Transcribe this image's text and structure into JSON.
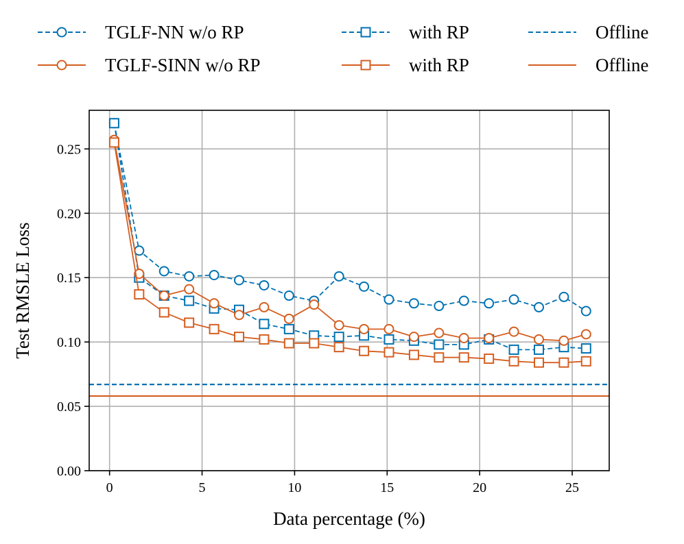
{
  "chart_data": {
    "type": "line",
    "xlabel": "Data percentage (%)",
    "ylabel": "Test RMSLE Loss",
    "xlim": [
      -1.1,
      27
    ],
    "ylim": [
      0,
      0.28
    ],
    "xticks": [
      0,
      5,
      10,
      15,
      20,
      25
    ],
    "yticks": [
      0.0,
      0.05,
      0.1,
      0.15,
      0.2,
      0.25
    ],
    "xtick_labels": [
      "0",
      "5",
      "10",
      "15",
      "20",
      "25"
    ],
    "ytick_labels": [
      "0.00",
      "0.05",
      "0.10",
      "0.15",
      "0.20",
      "0.25"
    ],
    "grid": true,
    "legend_position": "top",
    "x": [
      0.25,
      1.6,
      2.95,
      4.3,
      5.65,
      7.0,
      8.35,
      9.7,
      11.05,
      12.4,
      13.75,
      15.1,
      16.45,
      17.8,
      19.15,
      20.5,
      21.85,
      23.2,
      24.55,
      25.75
    ],
    "series": [
      {
        "name": "TGLF-NN w/o RP",
        "color": "#0072b2",
        "linestyle": "dashed",
        "marker": "circle",
        "values": [
          0.27,
          0.171,
          0.155,
          0.151,
          0.152,
          0.148,
          0.144,
          0.136,
          0.132,
          0.151,
          0.143,
          0.133,
          0.13,
          0.128,
          0.132,
          0.13,
          0.133,
          0.127,
          0.135,
          0.124
        ]
      },
      {
        "name": "with RP",
        "color": "#0072b2",
        "linestyle": "dashed",
        "marker": "square",
        "values": [
          0.27,
          0.15,
          0.136,
          0.132,
          0.126,
          0.125,
          0.114,
          0.11,
          0.105,
          0.104,
          0.105,
          0.102,
          0.101,
          0.098,
          0.098,
          0.102,
          0.094,
          0.094,
          0.096,
          0.095
        ]
      },
      {
        "name": "TGLF-SINN w/o RP",
        "color": "#d55e20",
        "linestyle": "solid",
        "marker": "circle",
        "values": [
          0.257,
          0.153,
          0.136,
          0.141,
          0.13,
          0.121,
          0.127,
          0.118,
          0.129,
          0.113,
          0.11,
          0.11,
          0.104,
          0.107,
          0.103,
          0.103,
          0.108,
          0.102,
          0.101,
          0.106
        ]
      },
      {
        "name": "with RP",
        "color": "#d55e20",
        "linestyle": "solid",
        "marker": "square",
        "values": [
          0.255,
          0.137,
          0.123,
          0.115,
          0.11,
          0.104,
          0.102,
          0.099,
          0.099,
          0.096,
          0.093,
          0.092,
          0.09,
          0.088,
          0.088,
          0.087,
          0.085,
          0.084,
          0.084,
          0.085
        ]
      }
    ],
    "reference_lines": [
      {
        "name": "Offline",
        "color": "#0072b2",
        "linestyle": "dashed",
        "value": 0.067
      },
      {
        "name": "Offline",
        "color": "#d55e20",
        "linestyle": "solid",
        "value": 0.058
      }
    ],
    "legend": [
      {
        "label": "TGLF-NN w/o RP",
        "color": "#0072b2",
        "linestyle": "dashed",
        "marker": "circle"
      },
      {
        "label": "TGLF-SINN w/o RP",
        "color": "#d55e20",
        "linestyle": "solid",
        "marker": "circle"
      },
      {
        "label": "with RP",
        "color": "#0072b2",
        "linestyle": "dashed",
        "marker": "square"
      },
      {
        "label": "with RP",
        "color": "#d55e20",
        "linestyle": "solid",
        "marker": "square"
      },
      {
        "label": "Offline",
        "color": "#0072b2",
        "linestyle": "dashed",
        "marker": "none"
      },
      {
        "label": "Offline",
        "color": "#d55e20",
        "linestyle": "solid",
        "marker": "none"
      }
    ]
  }
}
